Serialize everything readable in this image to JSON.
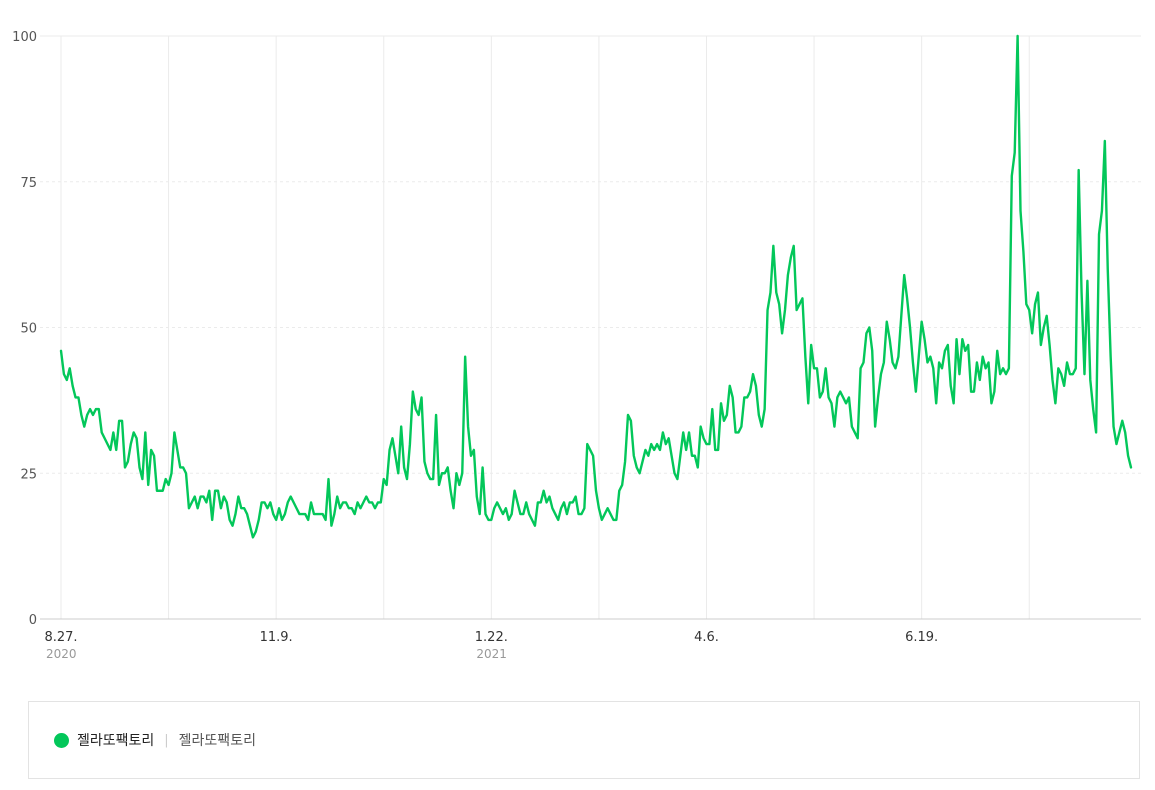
{
  "chart_data": {
    "type": "line",
    "title": "",
    "xlabel": "",
    "ylabel": "",
    "ylim": [
      0,
      100
    ],
    "yticks": [
      "0",
      "25",
      "50",
      "75",
      "100"
    ],
    "grid": true,
    "legend_position": "bottom",
    "x_ticks": [
      {
        "label": "8.27.",
        "year": "2020",
        "index": 0
      },
      {
        "label": "11.9.",
        "year": "",
        "index": 74
      },
      {
        "label": "1.22.",
        "year": "2021",
        "index": 148
      },
      {
        "label": "4.6.",
        "year": "",
        "index": 222
      },
      {
        "label": "6.19.",
        "year": "",
        "index": 296
      }
    ],
    "series": [
      {
        "name": "젤라또팩토리",
        "color": "#03c75a",
        "values": [
          46,
          42,
          41,
          43,
          40,
          38,
          38,
          35,
          33,
          35,
          36,
          35,
          36,
          36,
          32,
          31,
          30,
          29,
          32,
          29,
          34,
          34,
          26,
          27,
          30,
          32,
          31,
          26,
          24,
          32,
          23,
          29,
          28,
          22,
          22,
          22,
          24,
          23,
          25,
          32,
          29,
          26,
          26,
          25,
          19,
          20,
          21,
          19,
          21,
          21,
          20,
          22,
          17,
          22,
          22,
          19,
          21,
          20,
          17,
          16,
          18,
          21,
          19,
          19,
          18,
          16,
          14,
          15,
          17,
          20,
          20,
          19,
          20,
          18,
          17,
          19,
          17,
          18,
          20,
          21,
          20,
          19,
          18,
          18,
          18,
          17,
          20,
          18,
          18,
          18,
          18,
          17,
          24,
          16,
          18,
          21,
          19,
          20,
          20,
          19,
          19,
          18,
          20,
          19,
          20,
          21,
          20,
          20,
          19,
          20,
          20,
          24,
          23,
          29,
          31,
          28,
          25,
          33,
          26,
          24,
          30,
          39,
          36,
          35,
          38,
          27,
          25,
          24,
          24,
          35,
          23,
          25,
          25,
          26,
          22,
          19,
          25,
          23,
          25,
          45,
          33,
          28,
          29,
          21,
          18,
          26,
          18,
          17,
          17,
          19,
          20,
          19,
          18,
          19,
          17,
          18,
          22,
          20,
          18,
          18,
          20,
          18,
          17,
          16,
          20,
          20,
          22,
          20,
          21,
          19,
          18,
          17,
          19,
          20,
          18,
          20,
          20,
          21,
          18,
          18,
          19,
          30,
          29,
          28,
          22,
          19,
          17,
          18,
          19,
          18,
          17,
          17,
          22,
          23,
          27,
          35,
          34,
          28,
          26,
          25,
          27,
          29,
          28,
          30,
          29,
          30,
          29,
          32,
          30,
          31,
          28,
          25,
          24,
          28,
          32,
          29,
          32,
          28,
          28,
          26,
          33,
          31,
          30,
          30,
          36,
          29,
          29,
          37,
          34,
          35,
          40,
          38,
          32,
          32,
          33,
          38,
          38,
          39,
          42,
          40,
          35,
          33,
          36,
          53,
          56,
          64,
          56,
          54,
          49,
          53,
          59,
          62,
          64,
          53,
          54,
          55,
          45,
          37,
          47,
          43,
          43,
          38,
          39,
          43,
          38,
          37,
          33,
          38,
          39,
          38,
          37,
          38,
          33,
          32,
          31,
          43,
          44,
          49,
          50,
          46,
          33,
          38,
          42,
          44,
          51,
          48,
          44,
          43,
          45,
          52,
          59,
          55,
          50,
          44,
          39,
          45,
          51,
          48,
          44,
          45,
          43,
          37,
          44,
          43,
          46,
          47,
          40,
          37,
          48,
          42,
          48,
          46,
          47,
          39,
          39,
          44,
          41,
          45,
          43,
          44,
          37,
          39,
          46,
          42,
          43,
          42,
          43,
          76,
          80,
          100,
          70,
          63,
          54,
          53,
          49,
          54,
          56,
          47,
          50,
          52,
          47,
          41,
          37,
          43,
          42,
          40,
          44,
          42,
          42,
          43,
          77,
          56,
          42,
          58,
          41,
          36,
          32,
          66,
          70,
          82,
          60,
          45,
          33,
          30,
          32,
          34,
          32,
          28,
          26
        ],
        "legend_label": "젤라또팩토리",
        "legend_sub": "젤라또팩토리"
      }
    ]
  },
  "colors": {
    "line": "#03c75a",
    "grid": "#ebebeb",
    "axis": "#cccccc"
  }
}
